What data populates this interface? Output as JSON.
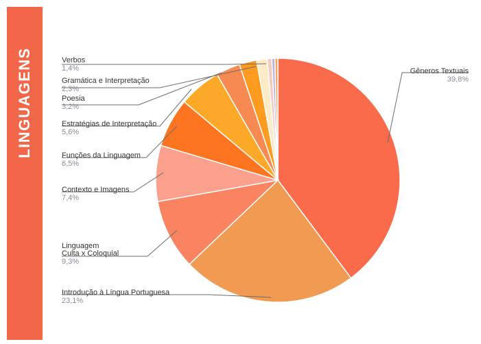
{
  "banner": {
    "title": "LINGUAGENS",
    "color": "#f2674a"
  },
  "chart_data": {
    "type": "pie",
    "slices": [
      {
        "name": "Gêneros Textuais",
        "value_label": "39,8%",
        "value": 39.8,
        "color": "#fa6b4b"
      },
      {
        "name": "Introdução à Língua Portuguesa",
        "value_label": "23,1%",
        "value": 23.1,
        "color": "#f19b52"
      },
      {
        "name": [
          "Linguagem",
          "Culta x Coloquial"
        ],
        "value_label": "9,3%",
        "value": 9.3,
        "color": "#fa8462"
      },
      {
        "name": "Contexto e Imagens",
        "value_label": "7,4%",
        "value": 7.4,
        "color": "#fca08e"
      },
      {
        "name": "Funções da Linguagem",
        "value_label": "6,5%",
        "value": 6.5,
        "color": "#fd7521"
      },
      {
        "name": "Estratégias de Interpretação",
        "value_label": "5,6%",
        "value": 5.6,
        "color": "#fca828"
      },
      {
        "name": "Poesia",
        "value_label": "3,2%",
        "value": 3.2,
        "color": "#f78a52"
      },
      {
        "name": "Gramática e Interpretação",
        "value_label": "2,3%",
        "value": 2.3,
        "color": "#fd9b21"
      },
      {
        "name": "Verbos",
        "value_label": "1,4%",
        "value": 1.4,
        "color": "#fdebc8"
      },
      {
        "name": "",
        "value_label": "",
        "value": 0.6,
        "color": "#f6c9c2"
      },
      {
        "name": "",
        "value_label": "",
        "value": 0.4,
        "color": "#b8b2dc"
      },
      {
        "name": "",
        "value_label": "",
        "value": 0.4,
        "color": "#f4a460"
      }
    ]
  }
}
